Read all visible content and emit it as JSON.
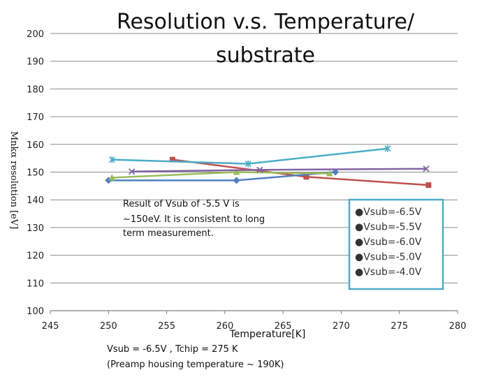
{
  "chart_data": {
    "type": "line",
    "title_lines": [
      "Resolution v.s. Temperature/",
      "substrate"
    ],
    "xlabel": "Temperature[K]",
    "ylabel": "Mnkα resolution [eV]",
    "xlim": [
      245,
      280
    ],
    "ylim": [
      100,
      200
    ],
    "xticks": [
      "245",
      "250",
      "255",
      "260",
      "265",
      "270",
      "275",
      "280"
    ],
    "yticks": [
      "100",
      "110",
      "120",
      "130",
      "140",
      "150",
      "160",
      "170",
      "180",
      "190",
      "200"
    ],
    "grid": "horizontal",
    "legend_position": "right",
    "series": [
      {
        "name": "Vsub=-6.5V",
        "legend_label": "●Vsub=-6.5V",
        "color": "#c0504d",
        "marker": "square",
        "x": [
          255.5,
          267,
          277.5
        ],
        "y": [
          154.5,
          148.3,
          145.3
        ]
      },
      {
        "name": "Vsub=-5.5V",
        "legend_label": "●Vsub=-5.5V",
        "color": "#4f81bd",
        "marker": "diamond",
        "x": [
          250,
          261,
          269.5
        ],
        "y": [
          147,
          147,
          150
        ]
      },
      {
        "name": "Vsub=-6.0V",
        "legend_label": "●Vsub=-6.0V",
        "color": "#9bbb59",
        "marker": "triangle",
        "x": [
          250.3,
          261,
          269
        ],
        "y": [
          148,
          150,
          149.5
        ]
      },
      {
        "name": "Vsub=-5.0V",
        "legend_label": "●Vsub=-5.0V",
        "color": "#8064a2",
        "marker": "x",
        "x": [
          252,
          263,
          277.3
        ],
        "y": [
          150.2,
          150.8,
          151.2
        ]
      },
      {
        "name": "Vsub=-4.0V",
        "legend_label": "●Vsub=-4.0V",
        "color": "#4bacc6",
        "marker": "star",
        "x": [
          250.3,
          262,
          274
        ],
        "y": [
          154.5,
          153,
          158.5
        ]
      }
    ],
    "annotations": {
      "result_note": [
        "Result of Vsub of -5.5 V is",
        "~150eV. It is consistent to long",
        "term measurement."
      ],
      "bottom_note": [
        "Vsub = -6.5V , Tchip = 275 K",
        "(Preamp housing temperature ~ 190K)"
      ]
    }
  }
}
